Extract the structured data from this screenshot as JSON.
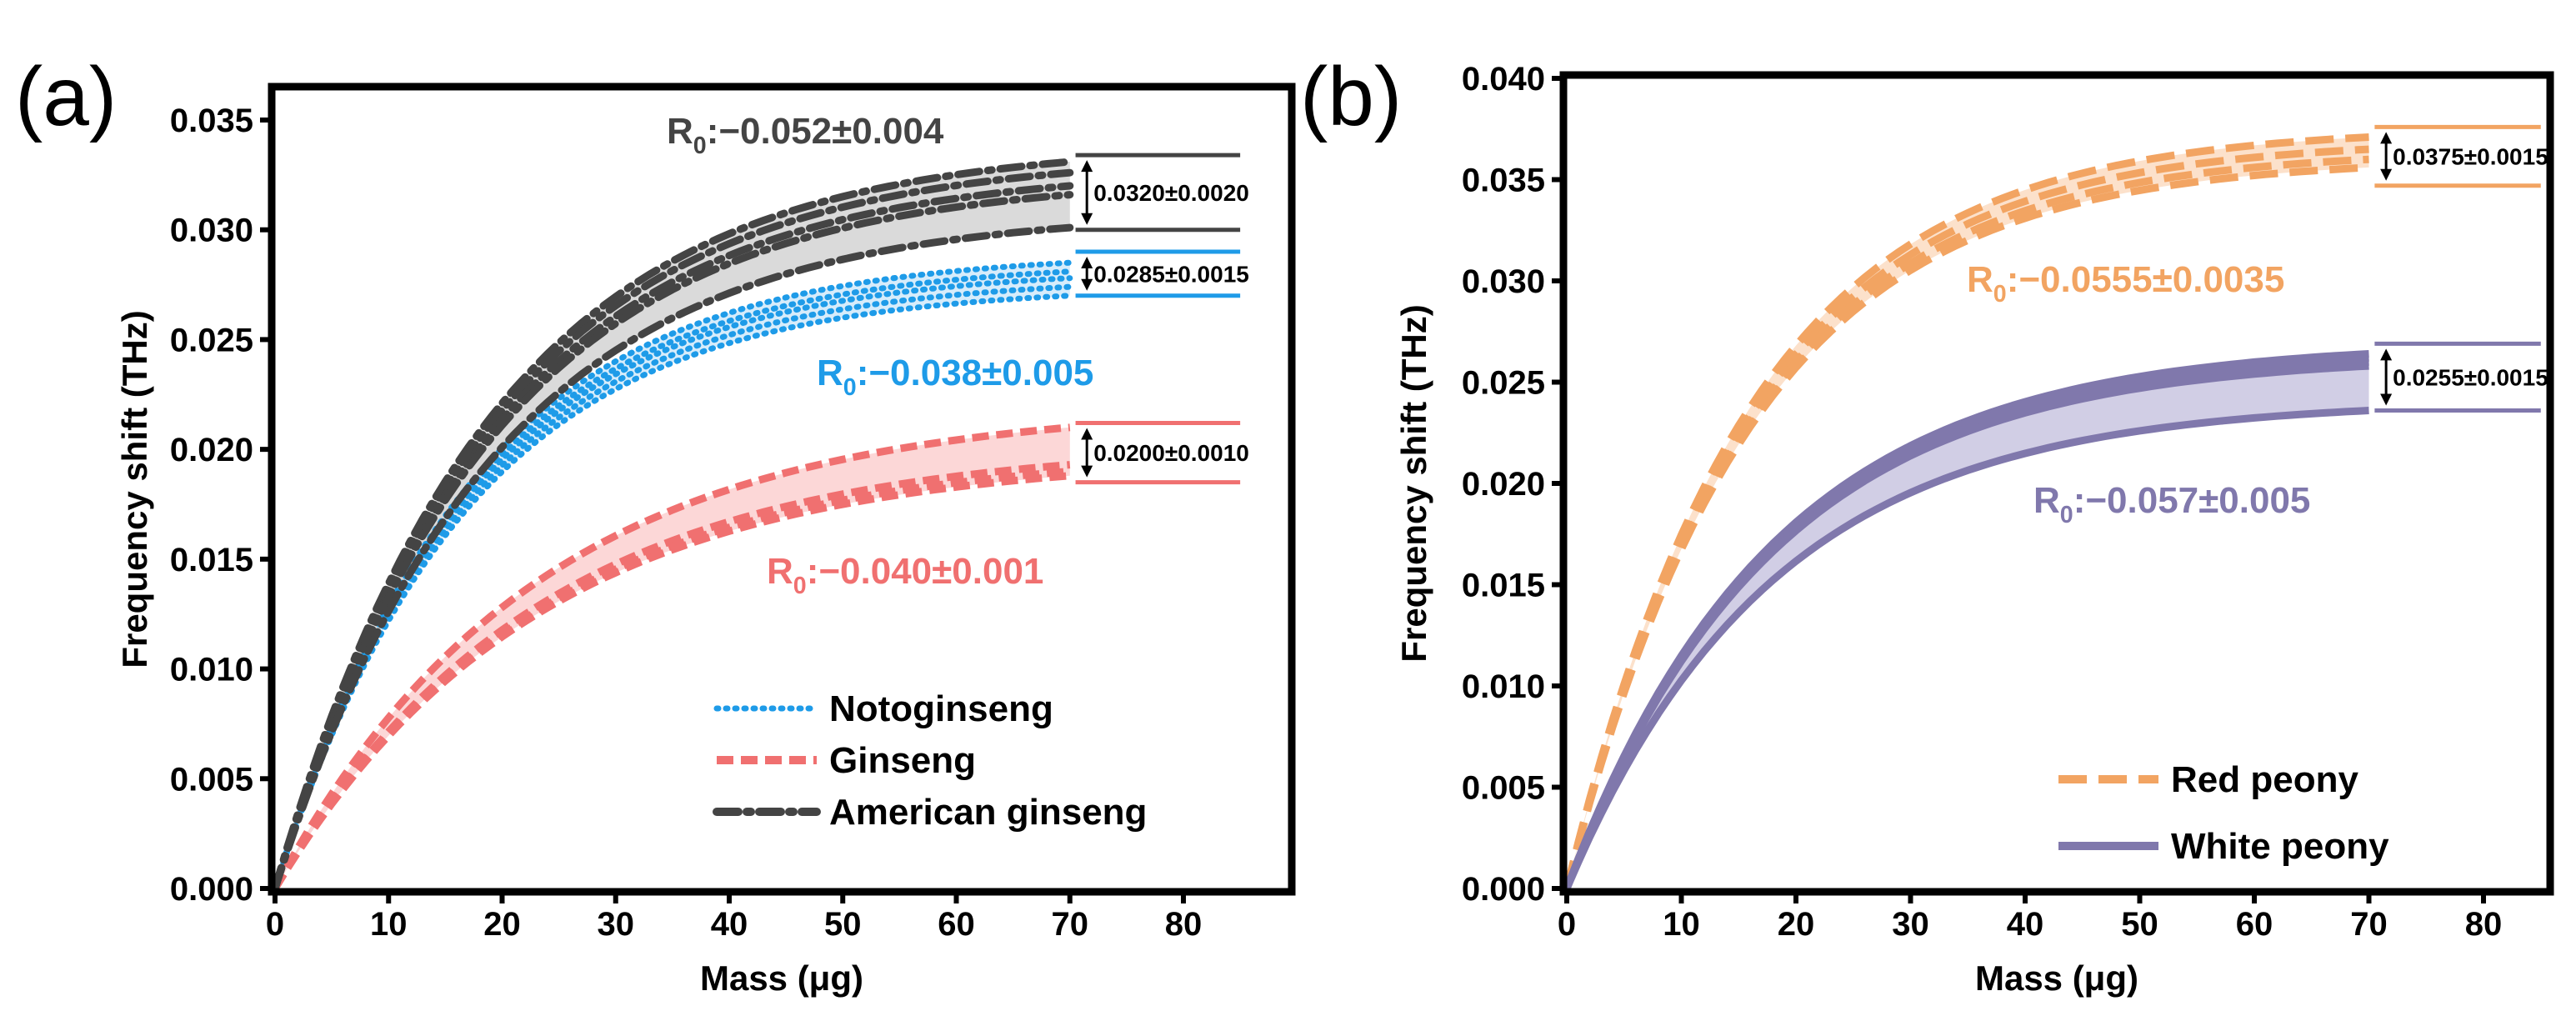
{
  "chart_data": [
    {
      "type": "line",
      "panel_label": "(a)",
      "xlabel": "Mass (μg)",
      "ylabel": "Frequency shift (THz)",
      "xlim": [
        0,
        89
      ],
      "ylim": [
        0,
        0.0365
      ],
      "xticks": [
        "0",
        "10",
        "20",
        "30",
        "40",
        "50",
        "60",
        "70",
        "80"
      ],
      "yticks": [
        "0.000",
        "0.005",
        "0.010",
        "0.015",
        "0.020",
        "0.025",
        "0.030",
        "0.035"
      ],
      "ytick_values": [
        0,
        0.005,
        0.01,
        0.015,
        0.02,
        0.025,
        0.03,
        0.035
      ],
      "x_end": 70,
      "series": [
        {
          "name": "Notoginseng",
          "color": "#1e9be8",
          "band": "#cfe9fa",
          "style": "dot",
          "tau": 17,
          "plateaus": [
            0.0285,
            0.0281,
            0.0278,
            0.0274,
            0.027
          ],
          "r0_label": "R₀:−0.038±0.005",
          "range_label": "0.0285±0.0015",
          "range": [
            0.027,
            0.029
          ]
        },
        {
          "name": "Ginseng",
          "color": "#f07070",
          "band": "#fbd0d0",
          "style": "dash",
          "tau": 23,
          "plateaus": [
            0.021,
            0.0193,
            0.019,
            0.0188
          ],
          "r0_label": "R₀:−0.040±0.001",
          "range_label": "0.0200±0.0010",
          "range": [
            0.0185,
            0.0212
          ]
        },
        {
          "name": "American ginseng",
          "color": "#444444",
          "band": "#d4d4d4",
          "style": "dashdot",
          "tau": 19,
          "plateaus": [
            0.0331,
            0.0326,
            0.032,
            0.0316,
            0.0301
          ],
          "r0_label": "R₀:−0.052±0.004",
          "range_label": "0.0320±0.0020",
          "range": [
            0.03,
            0.0334
          ]
        }
      ],
      "legend_position": "bottom-right"
    },
    {
      "type": "line",
      "panel_label": "(b)",
      "xlabel": "Mass (μg)",
      "ylabel": "Frequency shift (THz)",
      "xlim": [
        0,
        85
      ],
      "ylim": [
        0,
        0.04
      ],
      "xticks": [
        "0",
        "10",
        "20",
        "30",
        "40",
        "50",
        "60",
        "70",
        "80"
      ],
      "yticks": [
        "0.000",
        "0.005",
        "0.010",
        "0.015",
        "0.020",
        "0.025",
        "0.030",
        "0.035",
        "0.040"
      ],
      "ytick_values": [
        0,
        0.005,
        0.01,
        0.015,
        0.02,
        0.025,
        0.03,
        0.035,
        0.04
      ],
      "x_end": 70,
      "series": [
        {
          "name": "Red peony",
          "color": "#f2a462",
          "band": "#fbdcc2",
          "style": "longdash",
          "tau": 16,
          "plateaus": [
            0.0371,
            0.0365,
            0.036,
            0.0356
          ],
          "r0_label": "R₀:−0.0555±0.0035",
          "range_label": "0.0375±0.0015",
          "range": [
            0.0347,
            0.0376
          ]
        },
        {
          "name": "White peony",
          "color": "#8078ac",
          "band": "#c9c5e0",
          "style": "solid",
          "tau": 18,
          "plateaus": [
            0.0264,
            0.0262,
            0.026,
            0.0258,
            0.0236
          ],
          "r0_label": "R₀:−0.057±0.005",
          "range_label": "0.0255±0.0015",
          "range": [
            0.0236,
            0.0269
          ]
        }
      ],
      "legend_position": "bottom-right"
    }
  ]
}
